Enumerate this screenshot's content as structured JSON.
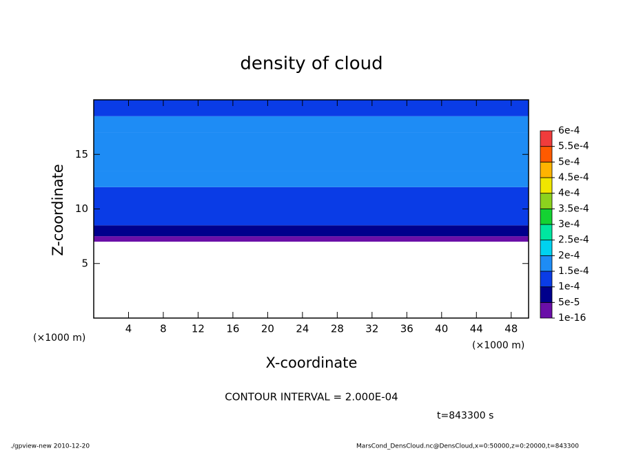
{
  "chart_data": {
    "type": "contour",
    "title": "density of cloud",
    "xlabel": "X-coordinate",
    "ylabel": "Z-coordinate",
    "x_units": "(×1000 m)",
    "xlim": [
      0,
      50
    ],
    "ylim": [
      0,
      20
    ],
    "xticks": [
      4,
      8,
      12,
      16,
      20,
      24,
      28,
      32,
      36,
      40,
      44,
      48
    ],
    "yticks": [
      5,
      10,
      15
    ],
    "field": {
      "z_edges": [
        7,
        7.5,
        8.5,
        10,
        12,
        13.5,
        17,
        18.5,
        20
      ],
      "values": [
        2e-05,
        7e-05,
        0.00011,
        0.00014,
        0.00016,
        0.00018,
        0.00016,
        0.00013
      ]
    },
    "levels": [
      {
        "value": 1e-16,
        "label": "1e-16"
      },
      {
        "value": 5e-05,
        "label": "5e-5"
      },
      {
        "value": 0.0001,
        "label": "1e-4"
      },
      {
        "value": 0.00015,
        "label": "1.5e-4"
      },
      {
        "value": 0.0002,
        "label": "2e-4"
      },
      {
        "value": 0.00025,
        "label": "2.5e-4"
      },
      {
        "value": 0.0003,
        "label": "3e-4"
      },
      {
        "value": 0.00035,
        "label": "3.5e-4"
      },
      {
        "value": 0.0004,
        "label": "4e-4"
      },
      {
        "value": 0.00045,
        "label": "4.5e-4"
      },
      {
        "value": 0.0005,
        "label": "5e-4"
      },
      {
        "value": 0.00055,
        "label": "5.5e-4"
      },
      {
        "value": 0.0006,
        "label": "6e-4"
      }
    ],
    "colors": [
      "#6a0fa8",
      "#00008c",
      "#0a3ce6",
      "#1e8cf5",
      "#00d2f0",
      "#00e6a0",
      "#14d232",
      "#8cd21e",
      "#f0e600",
      "#ffb400",
      "#ff5a00",
      "#f03c3c",
      "#f5a0a0"
    ],
    "contour_interval": "CONTOUR INTERVAL = 2.000E-04",
    "time": "t=843300 s",
    "footer_left": "./gpview-new  2010-12-20",
    "footer_right": "MarsCond_DensCloud.nc@DensCloud,x=0:50000,z=0:20000,t=843300"
  }
}
